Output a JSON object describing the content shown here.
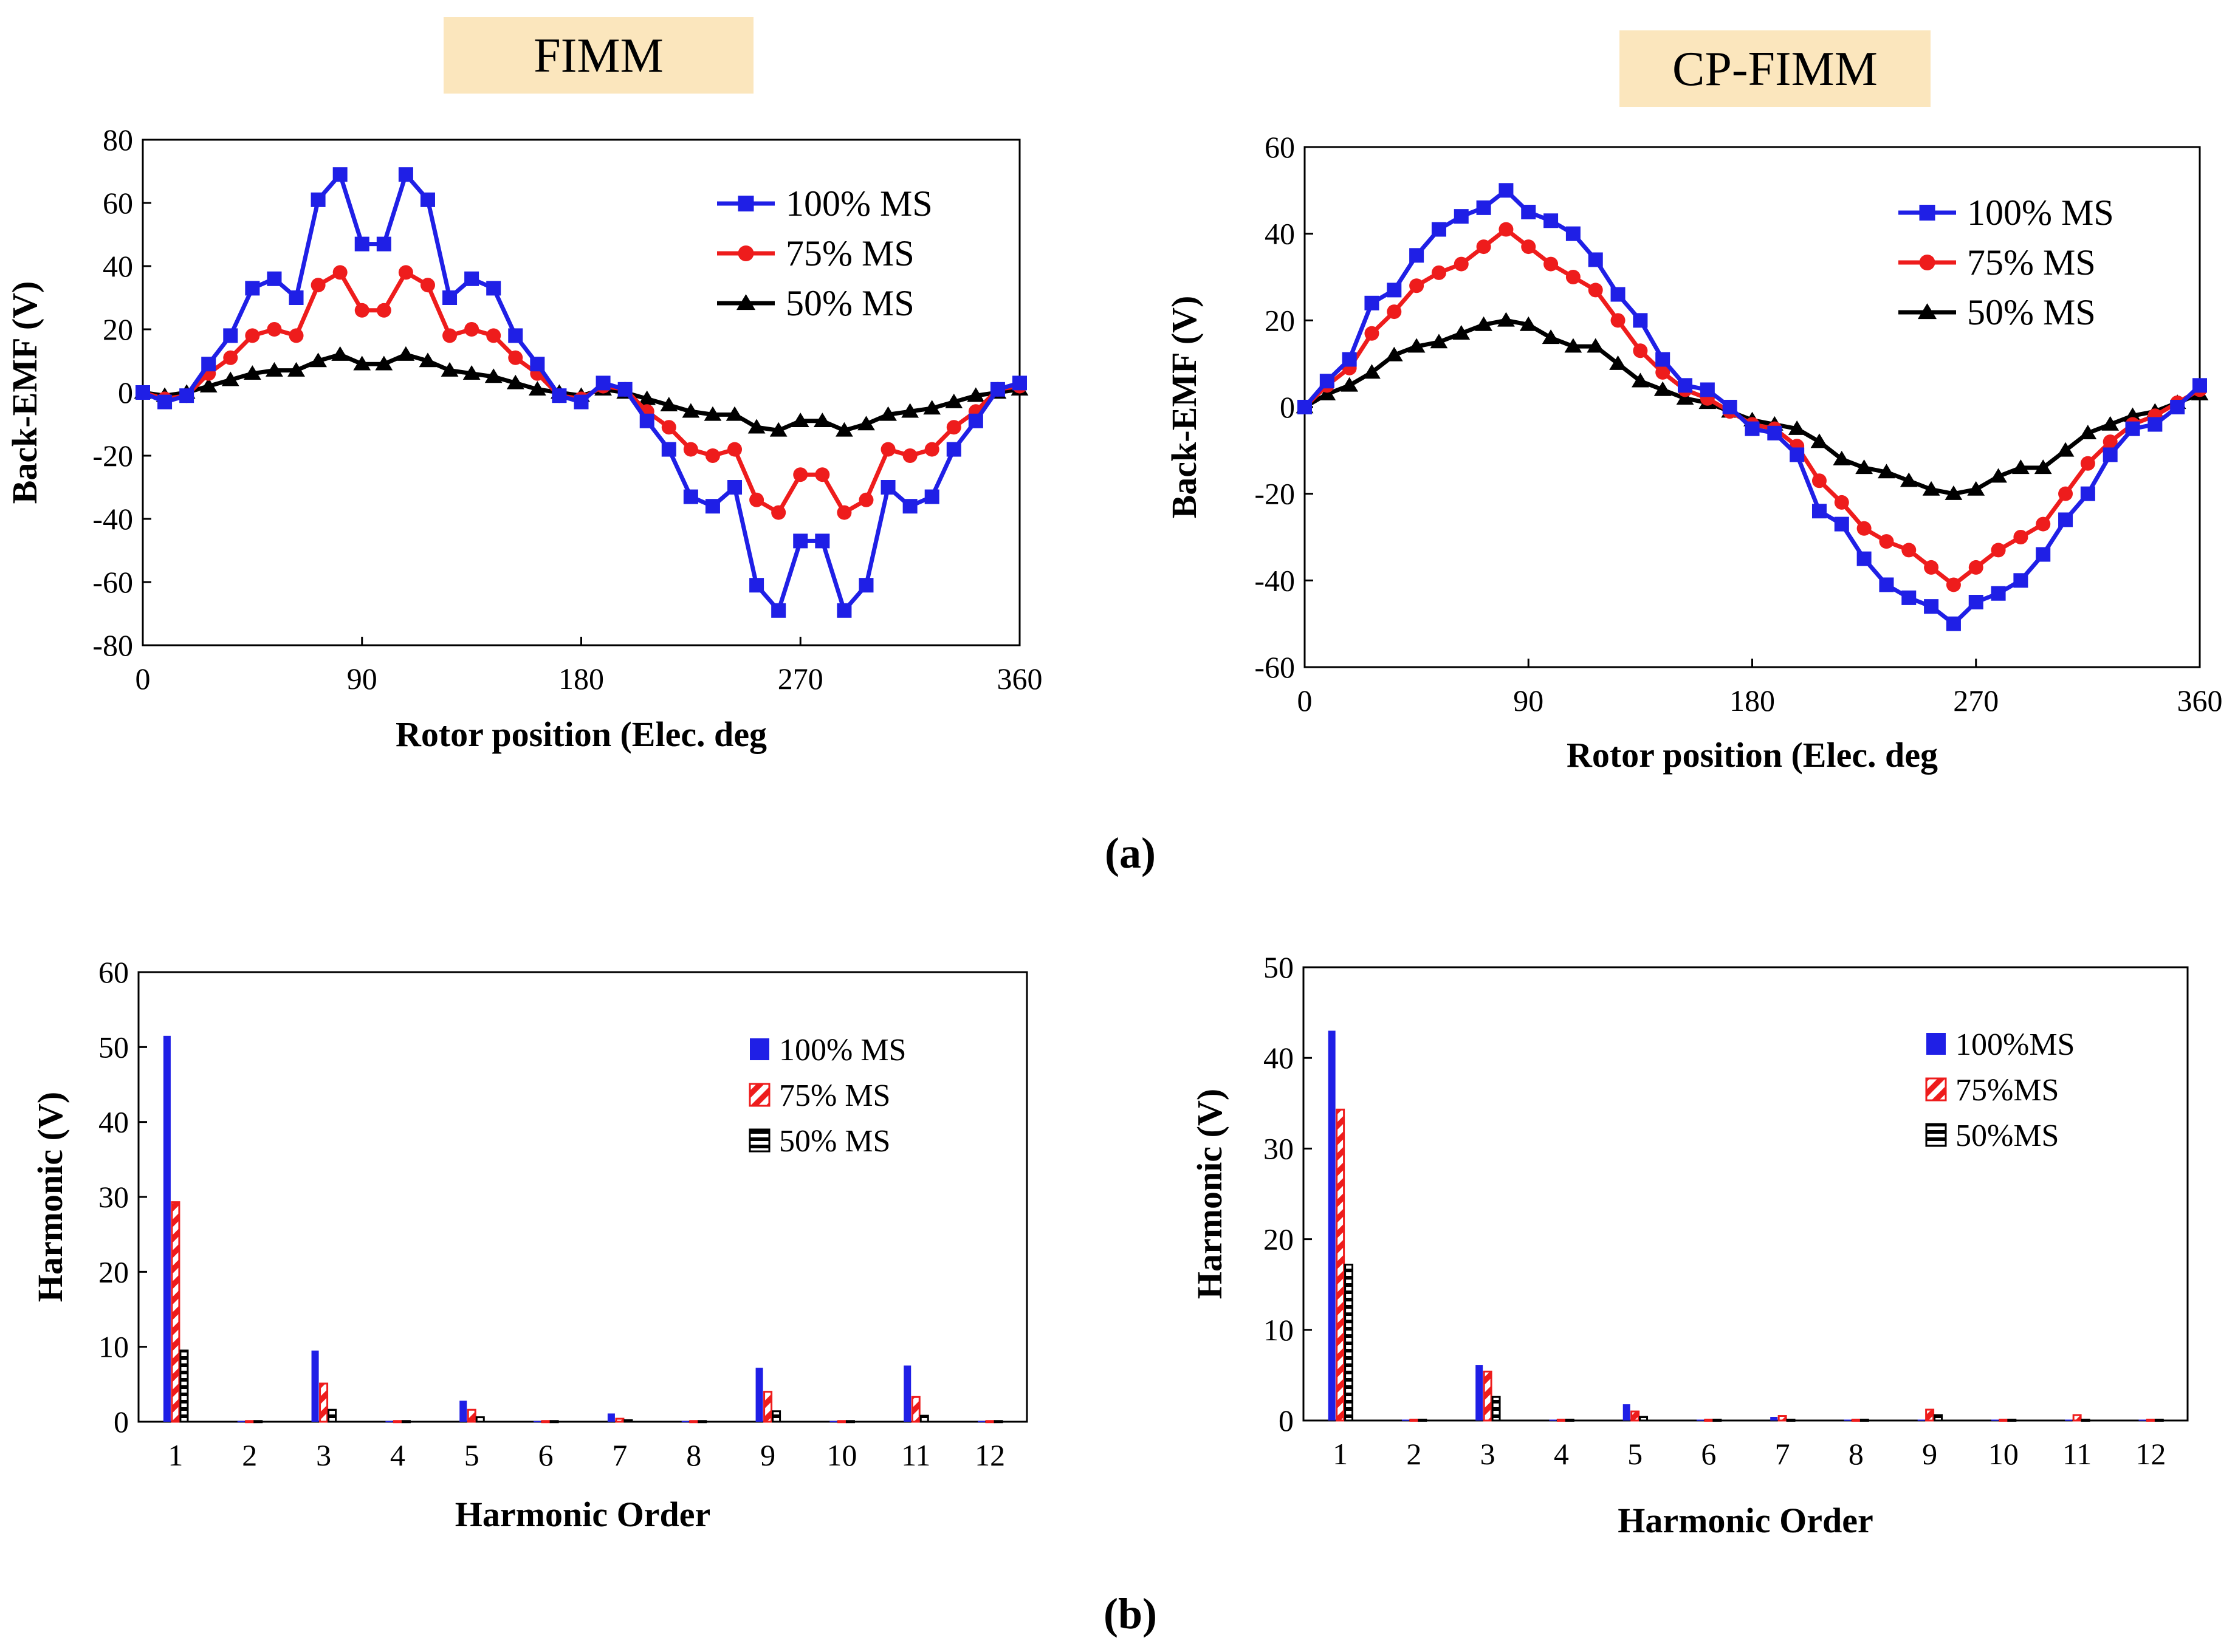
{
  "figure": {
    "panel_a_label": "(a)",
    "panel_b_label": "(b)",
    "colors": {
      "s100": "#1f1fe6",
      "s75": "#ee1c1c",
      "s50": "#000000",
      "title_bg": "#fbe6bd",
      "axis": "#000000"
    }
  },
  "chart_data": [
    {
      "id": "fimm_emf",
      "type": "line",
      "title": "FIMM",
      "xlabel": "Rotor position (Elec. deg",
      "ylabel": "Back-EMF (V)",
      "xlim": [
        0,
        360
      ],
      "ylim": [
        -80,
        80
      ],
      "xticks": [
        0,
        90,
        180,
        270,
        360
      ],
      "yticks": [
        -80,
        -60,
        -40,
        -20,
        0,
        20,
        40,
        60,
        80
      ],
      "grid": false,
      "legend_position": "top-right",
      "x": [
        0,
        9,
        18,
        27,
        36,
        45,
        54,
        63,
        72,
        81,
        90,
        99,
        108,
        117,
        126,
        135,
        144,
        153,
        162,
        171,
        180,
        189,
        198,
        207,
        216,
        225,
        234,
        243,
        252,
        261,
        270,
        279,
        288,
        297,
        306,
        315,
        324,
        333,
        342,
        351,
        360
      ],
      "series": [
        {
          "name": "100% MS",
          "marker": "square",
          "color": "#1f1fe6",
          "values": [
            0,
            -3,
            -1,
            9,
            18,
            33,
            36,
            30,
            61,
            69,
            47,
            47,
            69,
            61,
            30,
            36,
            33,
            18,
            9,
            -1,
            -3,
            3,
            1,
            -9,
            -18,
            -33,
            -36,
            -30,
            -61,
            -69,
            -47,
            -47,
            -69,
            -61,
            -30,
            -36,
            -33,
            -18,
            -9,
            1,
            3
          ]
        },
        {
          "name": "75% MS",
          "marker": "circle",
          "color": "#ee1c1c",
          "values": [
            0,
            -2,
            -1,
            6,
            11,
            18,
            20,
            18,
            34,
            38,
            26,
            26,
            38,
            34,
            18,
            20,
            18,
            11,
            6,
            -1,
            -2,
            2,
            1,
            -6,
            -11,
            -18,
            -20,
            -18,
            -34,
            -38,
            -26,
            -26,
            -38,
            -34,
            -18,
            -20,
            -18,
            -11,
            -6,
            1,
            2
          ]
        },
        {
          "name": "50% MS",
          "marker": "triangle",
          "color": "#000000",
          "values": [
            0,
            -1,
            0,
            2,
            4,
            6,
            7,
            7,
            10,
            12,
            9,
            9,
            12,
            10,
            7,
            6,
            5,
            3,
            1,
            0,
            -1,
            1,
            0,
            -2,
            -4,
            -6,
            -7,
            -7,
            -11,
            -12,
            -9,
            -9,
            -12,
            -10,
            -7,
            -6,
            -5,
            -3,
            -1,
            0,
            1
          ]
        }
      ]
    },
    {
      "id": "cpfimm_emf",
      "type": "line",
      "title": "CP-FIMM",
      "xlabel": "Rotor position (Elec. deg",
      "ylabel": "Back-EMF (V)",
      "xlim": [
        0,
        360
      ],
      "ylim": [
        -60,
        60
      ],
      "xticks": [
        0,
        90,
        180,
        270,
        360
      ],
      "yticks": [
        -60,
        -40,
        -20,
        0,
        20,
        40,
        60
      ],
      "grid": false,
      "legend_position": "top-right",
      "x": [
        0,
        9,
        18,
        27,
        36,
        45,
        54,
        63,
        72,
        81,
        90,
        99,
        108,
        117,
        126,
        135,
        144,
        153,
        162,
        171,
        180,
        189,
        198,
        207,
        216,
        225,
        234,
        243,
        252,
        261,
        270,
        279,
        288,
        297,
        306,
        315,
        324,
        333,
        342,
        351,
        360
      ],
      "series": [
        {
          "name": "100% MS",
          "marker": "square",
          "color": "#1f1fe6",
          "values": [
            0,
            6,
            11,
            24,
            27,
            35,
            41,
            44,
            46,
            50,
            45,
            43,
            40,
            34,
            26,
            20,
            11,
            5,
            4,
            0,
            -5,
            -6,
            -11,
            -24,
            -27,
            -35,
            -41,
            -44,
            -46,
            -50,
            -45,
            -43,
            -40,
            -34,
            -26,
            -20,
            -11,
            -5,
            -4,
            0,
            5
          ]
        },
        {
          "name": "75% MS",
          "marker": "circle",
          "color": "#ee1c1c",
          "values": [
            0,
            5,
            9,
            17,
            22,
            28,
            31,
            33,
            37,
            41,
            37,
            33,
            30,
            27,
            20,
            13,
            8,
            4,
            2,
            -1,
            -4,
            -5,
            -9,
            -17,
            -22,
            -28,
            -31,
            -33,
            -37,
            -41,
            -37,
            -33,
            -30,
            -27,
            -20,
            -13,
            -8,
            -4,
            -2,
            1,
            4
          ]
        },
        {
          "name": "50% MS",
          "marker": "triangle",
          "color": "#000000",
          "values": [
            0,
            3,
            5,
            8,
            12,
            14,
            15,
            17,
            19,
            20,
            19,
            16,
            14,
            14,
            10,
            6,
            4,
            2,
            1,
            -1,
            -3,
            -4,
            -5,
            -8,
            -12,
            -14,
            -15,
            -17,
            -19,
            -20,
            -19,
            -16,
            -14,
            -14,
            -10,
            -6,
            -4,
            -2,
            -1,
            1,
            3
          ]
        }
      ]
    },
    {
      "id": "fimm_harm",
      "type": "bar",
      "title": "",
      "xlabel": "Harmonic Order",
      "ylabel": "Harmonic (V)",
      "ylim": [
        0,
        60
      ],
      "yticks": [
        0,
        10,
        20,
        30,
        40,
        50,
        60
      ],
      "categories": [
        "1",
        "2",
        "3",
        "4",
        "5",
        "6",
        "7",
        "8",
        "9",
        "10",
        "11",
        "12"
      ],
      "grid": false,
      "legend_position": "top-right",
      "series": [
        {
          "name": "100% MS",
          "style": "solid",
          "color": "#1f1fe6",
          "values": [
            51.5,
            0.1,
            9.5,
            0.1,
            2.8,
            0.1,
            1.1,
            0.1,
            7.2,
            0.1,
            7.5,
            0.1
          ]
        },
        {
          "name": "75% MS",
          "style": "hatched",
          "color": "#ee1c1c",
          "values": [
            29.3,
            0.1,
            5.1,
            0.1,
            1.6,
            0.1,
            0.4,
            0.1,
            4.0,
            0.1,
            3.3,
            0.1
          ]
        },
        {
          "name": "50% MS",
          "style": "striped",
          "color": "#000000",
          "values": [
            9.5,
            0.1,
            1.6,
            0.1,
            0.6,
            0.1,
            0.2,
            0.1,
            1.4,
            0.1,
            0.8,
            0.1
          ]
        }
      ]
    },
    {
      "id": "cpfimm_harm",
      "type": "bar",
      "title": "",
      "xlabel": "Harmonic Order",
      "ylabel": "Harmonic (V)",
      "ylim": [
        0,
        50
      ],
      "yticks": [
        0,
        10,
        20,
        30,
        40,
        50
      ],
      "categories": [
        "1",
        "2",
        "3",
        "4",
        "5",
        "6",
        "7",
        "8",
        "9",
        "10",
        "11",
        "12"
      ],
      "grid": false,
      "legend_position": "top-right",
      "series": [
        {
          "name": "100%MS",
          "style": "solid",
          "color": "#1f1fe6",
          "values": [
            43.0,
            0.1,
            6.1,
            0.1,
            1.8,
            0.1,
            0.4,
            0.1,
            0.1,
            0.1,
            0.1,
            0.1
          ]
        },
        {
          "name": "75%MS",
          "style": "hatched",
          "color": "#ee1c1c",
          "values": [
            34.3,
            0.1,
            5.4,
            0.1,
            1.0,
            0.1,
            0.5,
            0.1,
            1.2,
            0.1,
            0.6,
            0.1
          ]
        },
        {
          "name": "50%MS",
          "style": "striped",
          "color": "#000000",
          "values": [
            17.2,
            0.1,
            2.6,
            0.1,
            0.4,
            0.1,
            0.1,
            0.1,
            0.6,
            0.1,
            0.1,
            0.1
          ]
        }
      ]
    }
  ]
}
